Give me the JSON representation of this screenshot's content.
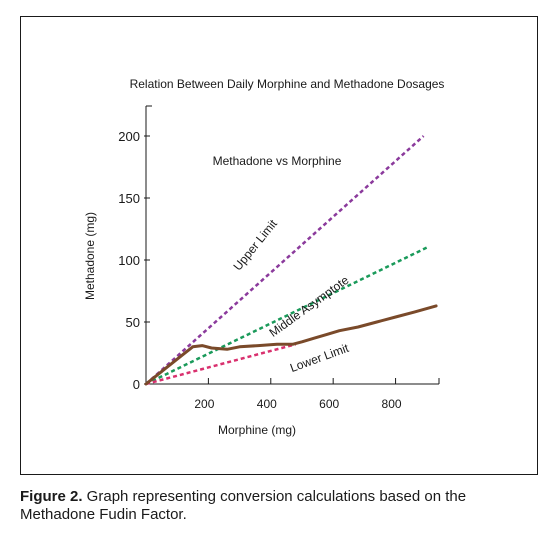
{
  "chart_data": {
    "type": "line",
    "title": "Relation Between Daily Morphine and Methadone Dosages",
    "subtitle": "Methadone vs Morphine",
    "xlabel": "Morphine (mg)",
    "ylabel": "Methadone (mg)",
    "xlim": [
      0,
      920
    ],
    "ylim": [
      0,
      200
    ],
    "xticks": [
      200,
      400,
      600,
      800
    ],
    "yticks": [
      0,
      50,
      100,
      150,
      200
    ],
    "grid": false,
    "series": [
      {
        "name": "Upper Limit",
        "style": "dashed",
        "color": "#8b3a9c",
        "x": [
          0,
          890
        ],
        "y": [
          0,
          200
        ]
      },
      {
        "name": "Middle Asymptote",
        "style": "dashed",
        "color": "#1a9a5a",
        "x": [
          0,
          900
        ],
        "y": [
          0,
          110
        ]
      },
      {
        "name": "Lower Limit",
        "style": "dashed",
        "color": "#d9306e",
        "x": [
          0,
          480
        ],
        "y": [
          0,
          32
        ]
      },
      {
        "name": "",
        "style": "solid",
        "color": "#7a4a2a",
        "x": [
          0,
          60,
          120,
          150,
          180,
          210,
          260,
          300,
          360,
          420,
          470,
          500,
          540,
          580,
          620,
          680,
          740,
          800,
          860,
          930
        ],
        "y": [
          0,
          12,
          24,
          30,
          31,
          29,
          28,
          30,
          31,
          32,
          32,
          34,
          37,
          40,
          43,
          46,
          50,
          54,
          58,
          63
        ]
      }
    ],
    "annotations": [
      {
        "text": "Upper Limit",
        "x": 360,
        "y": 110
      },
      {
        "text": "Middle Asymptote",
        "x": 530,
        "y": 60
      },
      {
        "text": "Lower Limit",
        "x": 560,
        "y": 18
      }
    ]
  },
  "caption": {
    "label": "Figure 2.",
    "text": " Graph representing conversion calculations based on the Methadone Fudin Factor."
  }
}
